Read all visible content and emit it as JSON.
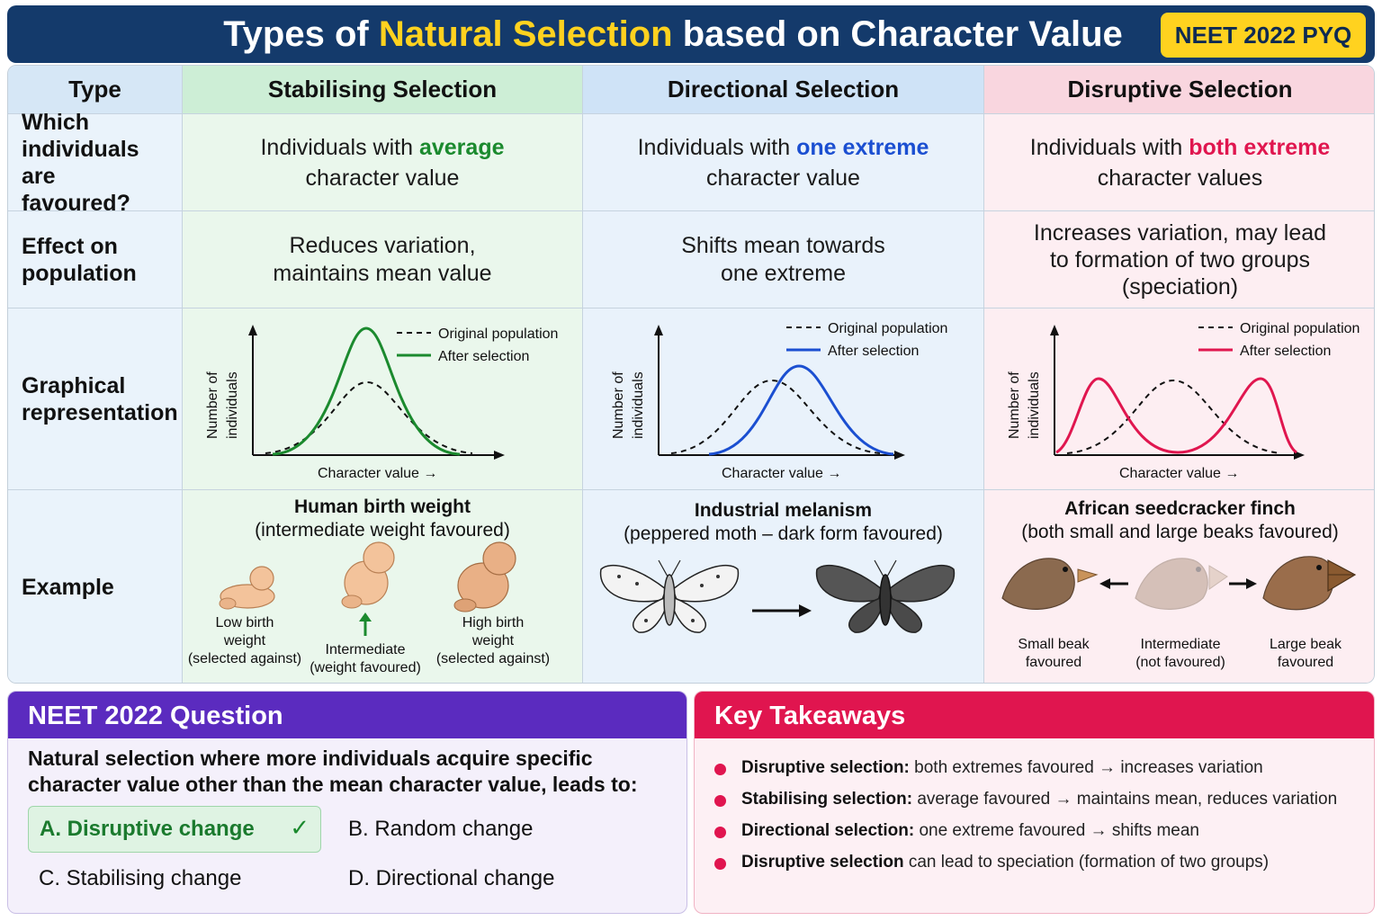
{
  "header": {
    "title_pre": "Types of ",
    "title_highlight": "Natural Selection",
    "title_post": " based on Character Value",
    "badge": "NEET 2022 PYQ",
    "colors": {
      "bar": "#143a6b",
      "highlight": "#ffd21f"
    }
  },
  "table": {
    "col_headers": [
      "Type",
      "Stabilising Selection",
      "Directional Selection",
      "Disruptive Selection"
    ],
    "row_labels": {
      "favoured": "Which individuals are favoured?",
      "effect": "Effect on population",
      "graph": "Graphical representation",
      "example": "Example"
    },
    "favoured": [
      {
        "pre": "Individuals with ",
        "emph": "average",
        "post": "character value"
      },
      {
        "pre": "Individuals with ",
        "emph": "one extreme",
        "post": "character value"
      },
      {
        "pre": "Individuals with ",
        "emph": "both extreme",
        "post": "character values"
      }
    ],
    "effect": [
      {
        "l1": "Reduces variation,",
        "l2": "maintains mean value"
      },
      {
        "l1": "Shifts mean towards",
        "l2": "one extreme"
      },
      {
        "l1": "Increases variation, may lead",
        "l2": "to formation of two groups",
        "l3": "(speciation)"
      }
    ],
    "graph_labels": {
      "y_axis_1": "Number of",
      "y_axis_2": "individuals",
      "x_axis": "Character value →",
      "legend_original": "Original population",
      "legend_after": "After selection"
    },
    "examples": [
      {
        "title": "Human birth weight",
        "subtitle": "(intermediate weight favoured)",
        "items": [
          {
            "l1": "Low birth",
            "l2": "weight",
            "l3": "(selected against)"
          },
          {
            "l1": "Intermediate",
            "l2": "(weight favoured)"
          },
          {
            "l1": "High birth",
            "l2": "weight",
            "l3": "(selected against)"
          }
        ]
      },
      {
        "title": "Industrial melanism",
        "subtitle": "(peppered moth – dark form favoured)"
      },
      {
        "title": "African seedcracker finch",
        "subtitle": "(both small and large beaks favoured)",
        "items": [
          {
            "l1": "Small beak",
            "l2": "favoured"
          },
          {
            "l1": "Intermediate",
            "l2": "(not favoured)"
          },
          {
            "l1": "Large beak",
            "l2": "favoured"
          }
        ]
      }
    ],
    "colors": {
      "stabilising": "#1b8a2e",
      "directional": "#1b4fd1",
      "disruptive": "#e0164f"
    }
  },
  "question": {
    "heading": "NEET 2022 Question",
    "text_l1": "Natural selection where more individuals acquire specific",
    "text_l2": "character value other than the mean character value, leads to:",
    "options": [
      "A.  Disruptive change",
      "B.  Random change",
      "C.  Stabilising change",
      "D.  Directional change"
    ],
    "correct_icon": "check-icon"
  },
  "takeaways": {
    "heading": "Key Takeaways",
    "items": [
      {
        "bold": "Disruptive selection:",
        "rest": " both extremes favoured → increases variation"
      },
      {
        "bold": "Stabilising selection:",
        "rest": " average favoured → maintains mean, reduces variation"
      },
      {
        "bold": "Directional selection:",
        "rest": " one extreme favoured → shifts mean"
      },
      {
        "bold": "Disruptive selection",
        "rest": " can lead to speciation (formation of two groups)"
      }
    ]
  }
}
